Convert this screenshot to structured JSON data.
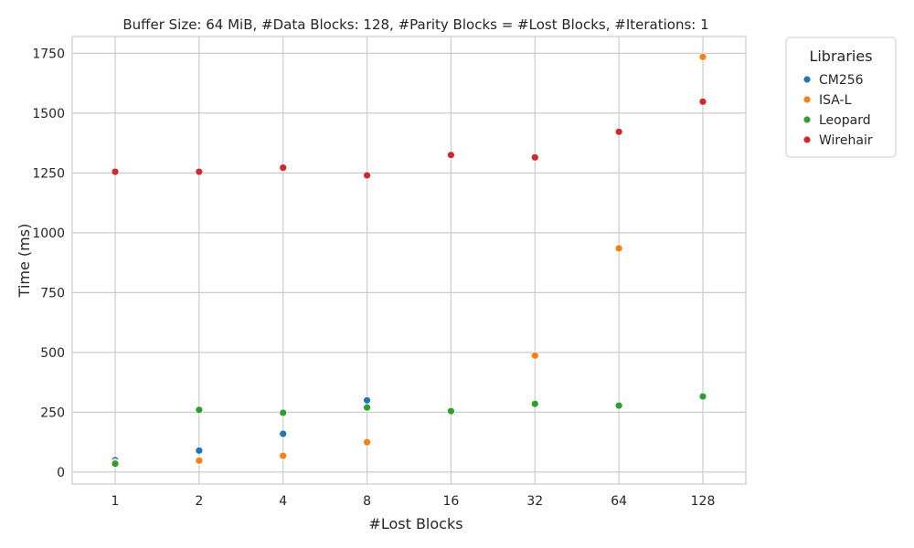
{
  "chart_data": {
    "type": "scatter",
    "title": "Buffer Size: 64 MiB, #Data Blocks: 128, #Parity Blocks = #Lost Blocks, #Iterations: 1",
    "xlabel": "#Lost Blocks",
    "ylabel": "Time (ms)",
    "x_scale": "log2",
    "x_ticks": [
      "1",
      "2",
      "4",
      "8",
      "16",
      "32",
      "64",
      "128"
    ],
    "y_ticks": [
      0,
      250,
      500,
      750,
      1000,
      1250,
      1500,
      1750
    ],
    "ylim": [
      -50,
      1820
    ],
    "grid": true,
    "legend": {
      "title": "Libraries",
      "placement": "outside-top-right"
    },
    "series": [
      {
        "name": "CM256",
        "color": "#1f77b4",
        "points": [
          [
            1,
            50
          ],
          [
            2,
            90
          ],
          [
            4,
            160
          ],
          [
            8,
            300
          ],
          [
            16,
            255
          ]
        ]
      },
      {
        "name": "ISA-L",
        "color": "#ff7f0e",
        "points": [
          [
            1,
            40
          ],
          [
            2,
            48
          ],
          [
            4,
            68
          ],
          [
            8,
            125
          ],
          [
            16,
            250
          ],
          [
            32,
            487
          ],
          [
            64,
            935
          ],
          [
            128,
            1735
          ]
        ]
      },
      {
        "name": "Leopard",
        "color": "#2ca02c",
        "points": [
          [
            1,
            35
          ],
          [
            2,
            260
          ],
          [
            4,
            248
          ],
          [
            8,
            270
          ],
          [
            16,
            255
          ],
          [
            32,
            285
          ],
          [
            64,
            278
          ],
          [
            128,
            316
          ]
        ]
      },
      {
        "name": "Wirehair",
        "color": "#d62728",
        "points": [
          [
            1,
            1255
          ],
          [
            2,
            1255
          ],
          [
            4,
            1272
          ],
          [
            8,
            1240
          ],
          [
            16,
            1325
          ],
          [
            32,
            1315
          ],
          [
            64,
            1422
          ],
          [
            128,
            1548
          ]
        ]
      }
    ]
  }
}
